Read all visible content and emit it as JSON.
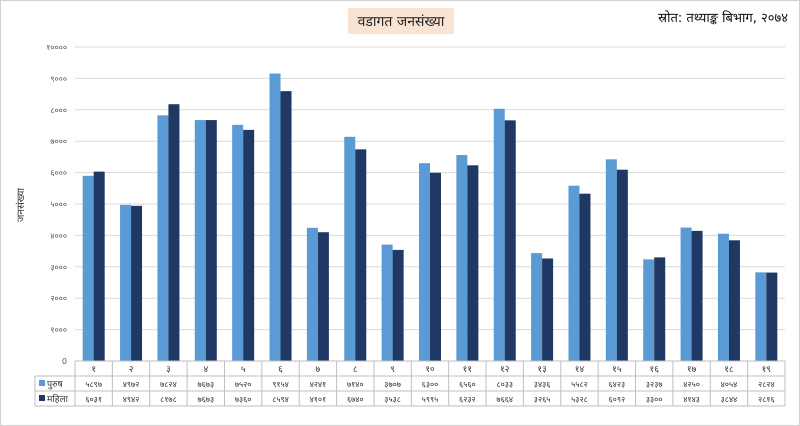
{
  "header": {
    "title": "वडागत जनसंख्या",
    "source": "स्रोत: तथ्याङ्क बिभाग, २०७४"
  },
  "colors": {
    "male": "#5b9bd5",
    "female": "#203864",
    "grid": "#d9d9d9",
    "title_bg": "#fbe3d4"
  },
  "chart_data": {
    "type": "bar",
    "title": "वडागत जनसंख्या",
    "ylabel": "जनसंख्या",
    "xlabel": "",
    "ylim": [
      0,
      10000
    ],
    "yticks": [
      "0",
      "१०००",
      "२०००",
      "३०००",
      "४०००",
      "५०००",
      "६०००",
      "७०००",
      "८०००",
      "९०००",
      "१००००"
    ],
    "ytick_values": [
      0,
      1000,
      2000,
      3000,
      4000,
      5000,
      6000,
      7000,
      8000,
      9000,
      10000
    ],
    "grid": true,
    "legend": "data-table",
    "categories": [
      "१",
      "२",
      "३",
      "४",
      "५",
      "६",
      "७",
      "८",
      "९",
      "१०",
      "११",
      "१२",
      "१३",
      "१४",
      "१५",
      "१६",
      "१७",
      "१८",
      "१९"
    ],
    "series": [
      {
        "name": "पुरुष",
        "values": [
          5897,
          4972,
          7824,
          7673,
          7520,
          9154,
          4241,
          7140,
          3707,
          6300,
          6560,
          8033,
          3436,
          5582,
          6423,
          3237,
          4250,
          4054,
          2824
        ],
        "labels": [
          "५८९७",
          "४९७२",
          "७८२४",
          "७६७३",
          "७५२०",
          "९१५४",
          "४२४१",
          "७१४०",
          "३७०७",
          "६३००",
          "६५६०",
          "८०३३",
          "३४३६",
          "५५८२",
          "६४२३",
          "३२३७",
          "४२५०",
          "४०५४",
          "२८२४"
        ]
      },
      {
        "name": "महिला",
        "values": [
          6031,
          4942,
          8178,
          7673,
          7360,
          8594,
          4101,
          6740,
          3538,
          5995,
          6232,
          7664,
          3265,
          5328,
          6092,
          3300,
          4143,
          3844,
          2816
        ],
        "labels": [
          "६०३१",
          "४९४२",
          "८१७८",
          "७६७३",
          "७३६०",
          "८५९४",
          "४१०१",
          "६७४०",
          "३५३८",
          "५९९५",
          "६२३२",
          "७६६४",
          "३२६५",
          "५३२८",
          "६०९२",
          "३३००",
          "४१४३",
          "३८४४",
          "२८१६"
        ]
      }
    ]
  }
}
